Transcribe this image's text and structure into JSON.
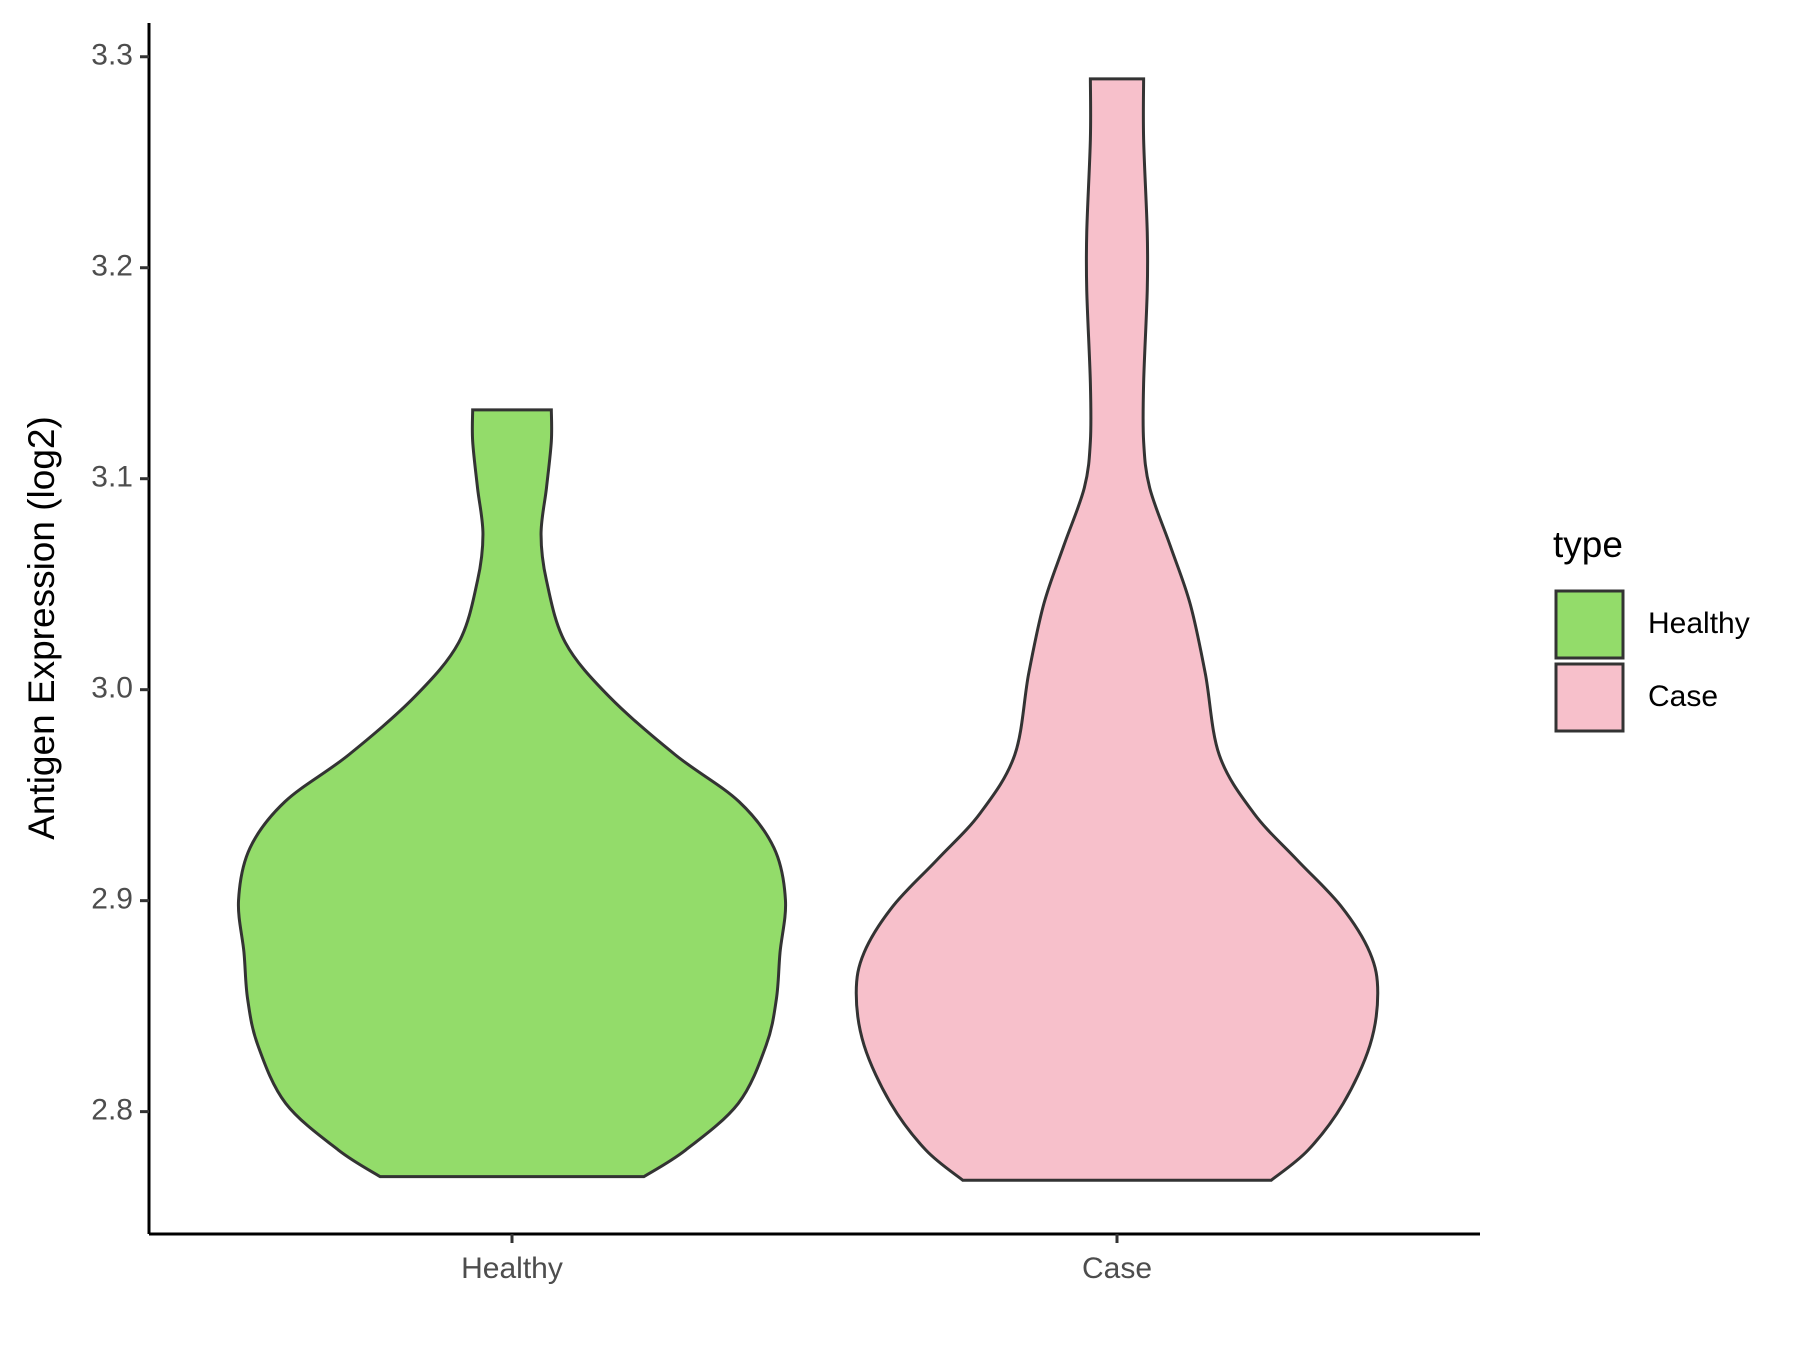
{
  "chart_data": {
    "type": "violin",
    "y_label": "Antigen Expression (log2)",
    "legend_title": "type",
    "legend": "right",
    "categories": [
      "Healthy",
      "Case"
    ],
    "series": [
      {
        "name": "Healthy",
        "color": "#93dc6a",
        "y": [
          2.7692,
          2.7818,
          2.8039,
          2.8314,
          2.8534,
          2.8754,
          2.9002,
          2.925,
          2.947,
          2.9691,
          2.9966,
          3.0224,
          3.0517,
          3.0737,
          3.0957,
          3.1177,
          3.1326
        ],
        "half_width": [
          0.218,
          0.287,
          0.374,
          0.42,
          0.437,
          0.443,
          0.452,
          0.433,
          0.375,
          0.27,
          0.161,
          0.088,
          0.057,
          0.048,
          0.057,
          0.065,
          0.065
        ]
      },
      {
        "name": "Case",
        "color": "#f7c0cb",
        "y": [
          2.7675,
          2.7818,
          2.8039,
          2.8314,
          2.8562,
          2.8754,
          2.8975,
          2.9195,
          2.9415,
          2.9691,
          3.0076,
          3.0406,
          3.0682,
          3.0957,
          3.1177,
          3.1453,
          3.1893,
          3.2169,
          3.2609,
          3.2895
        ],
        "half_width": [
          0.255,
          0.316,
          0.374,
          0.418,
          0.431,
          0.418,
          0.37,
          0.297,
          0.226,
          0.169,
          0.146,
          0.121,
          0.088,
          0.054,
          0.044,
          0.044,
          0.05,
          0.05,
          0.044,
          0.044
        ]
      }
    ],
    "ylim": [
      2.742,
      3.316
    ],
    "yticks": [
      2.8,
      2.9,
      {
        "value": 3,
        "label": "3.0"
      },
      3.1,
      3.2,
      3.3
    ],
    "grid": false
  }
}
